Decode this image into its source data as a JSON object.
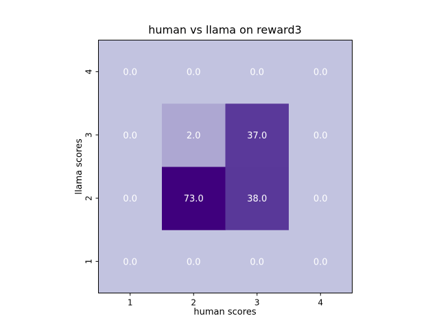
{
  "chart_data": {
    "type": "heatmap",
    "title": "human vs llama on reward3",
    "xlabel": "human scores",
    "ylabel": "llama scores",
    "x_categories": [
      "1",
      "2",
      "3",
      "4"
    ],
    "y_categories": [
      "1",
      "2",
      "3",
      "4"
    ],
    "values": [
      [
        0.0,
        0.0,
        0.0,
        0.0
      ],
      [
        0.0,
        73.0,
        38.0,
        0.0
      ],
      [
        0.0,
        2.0,
        37.0,
        0.0
      ],
      [
        0.0,
        0.0,
        0.0,
        0.0
      ]
    ],
    "value_labels": [
      [
        "0.0",
        "0.0",
        "0.0",
        "0.0"
      ],
      [
        "0.0",
        "73.0",
        "38.0",
        "0.0"
      ],
      [
        "0.0",
        "2.0",
        "37.0",
        "0.0"
      ],
      [
        "0.0",
        "0.0",
        "0.0",
        "0.0"
      ]
    ],
    "colormap": "Purples",
    "colors": {
      "low": "#c2c3e0",
      "mid": "#5a3a9a",
      "high": "#3f007d",
      "cell_text": "#ffffff"
    },
    "grid": false,
    "legend": "none"
  }
}
